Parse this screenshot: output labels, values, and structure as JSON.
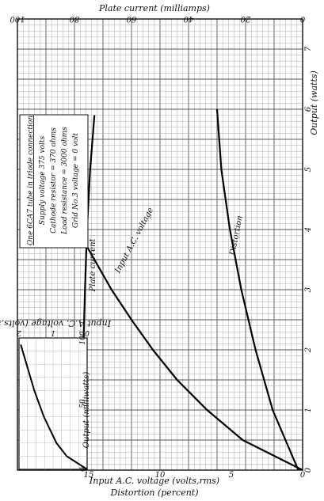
{
  "chart_data": {
    "type": "line",
    "orientation": "rotated-90",
    "grid": true,
    "main": {
      "title_top": "Plate current (milliamps)",
      "title_right": "Output (watts)",
      "title_bottom_1": "Input A.C. voltage (volts,rms)",
      "title_bottom_2": "Distortion (percent)",
      "plate_axis": {
        "range": [
          0,
          100
        ],
        "ticks": [
          "0",
          "20",
          "40",
          "60",
          "80",
          "100"
        ]
      },
      "output_axis": {
        "range": [
          0,
          7.5
        ],
        "ticks": [
          "0",
          "1",
          "2",
          "3",
          "4",
          "5",
          "6",
          "7"
        ]
      },
      "input_axis": {
        "range": [
          0,
          20
        ],
        "ticks": [
          "0",
          "5",
          "10",
          "15"
        ]
      },
      "series": [
        {
          "name": "Plate current",
          "units_axis": "plate_axis",
          "points": [
            [
              0,
              77.5
            ],
            [
              1,
              77.3
            ],
            [
              2,
              76.9
            ],
            [
              3,
              76.3
            ],
            [
              4,
              75.6
            ],
            [
              5,
              74.5
            ],
            [
              5.9,
              73.0
            ]
          ]
        },
        {
          "name": "Input A.C. voltage",
          "units_axis": "input_axis",
          "points": [
            [
              0,
              0
            ],
            [
              0.5,
              4.2
            ],
            [
              1,
              6.7
            ],
            [
              1.5,
              8.8
            ],
            [
              2,
              10.5
            ],
            [
              2.5,
              12.0
            ],
            [
              3,
              13.4
            ],
            [
              3.5,
              14.6
            ],
            [
              4,
              15.8
            ],
            [
              4.5,
              16.9
            ],
            [
              5,
              17.9
            ],
            [
              5.5,
              18.9
            ],
            [
              5.8,
              19.5
            ]
          ]
        },
        {
          "name": "Distortion",
          "units_axis": "input_axis",
          "points": [
            [
              0,
              0.3
            ],
            [
              0.5,
              1.2
            ],
            [
              1,
              2.1
            ],
            [
              2,
              3.3
            ],
            [
              3,
              4.3
            ],
            [
              4,
              5.1
            ],
            [
              5,
              5.7
            ],
            [
              6,
              6.0
            ]
          ]
        }
      ]
    },
    "inset": {
      "xlabel": "Output (milliwatts)",
      "ylabel": "Input A.C. voltage (volts,rms)",
      "output_axis": {
        "range": [
          0,
          100
        ],
        "ticks": [
          "0",
          "50",
          "100"
        ]
      },
      "input_axis": {
        "range": [
          0,
          2
        ],
        "ticks": [
          "0",
          "1",
          "2"
        ]
      },
      "series": [
        {
          "name": "Input A.C. voltage",
          "points": [
            [
              0,
              0
            ],
            [
              10,
              0.6
            ],
            [
              20,
              0.9
            ],
            [
              40,
              1.27
            ],
            [
              60,
              1.55
            ],
            [
              80,
              1.78
            ],
            [
              95,
              1.95
            ]
          ]
        }
      ]
    },
    "annotation": {
      "lines": [
        "One 6CA7 tube in triode connection",
        "Supply voltage 375 volts",
        "Cathode resistor = 370 ohms",
        "Load resistance = 3000 ohms",
        "Grid No.3 voltage = 0 volt"
      ]
    }
  }
}
